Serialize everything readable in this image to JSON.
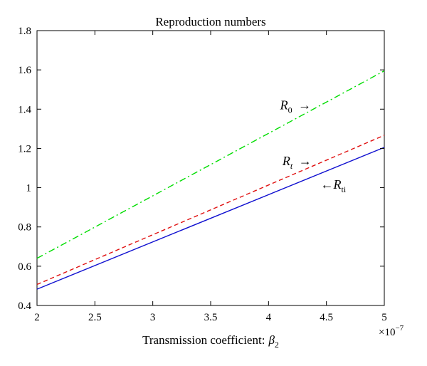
{
  "chart_data": {
    "type": "line",
    "title": "Reproduction numbers",
    "xlabel": "Transmission coefficient:",
    "xlabel_symbol": "β",
    "xlabel_subscript": "2",
    "ylabel": "",
    "x_multiplier": {
      "base": "×10",
      "exponent": "−7"
    },
    "xlim": [
      2,
      5
    ],
    "ylim": [
      0.4,
      1.8
    ],
    "x_ticks": [
      2,
      2.5,
      3,
      3.5,
      4,
      4.5,
      5
    ],
    "x_tick_labels": [
      "2",
      "2.5",
      "3",
      "3.5",
      "4",
      "4.5",
      "5"
    ],
    "y_ticks": [
      0.4,
      0.6,
      0.8,
      1.0,
      1.2,
      1.4,
      1.6,
      1.8
    ],
    "y_tick_labels": [
      "0.4",
      "0.6",
      "0.8",
      "1",
      "1.2",
      "1.4",
      "1.6",
      "1.8"
    ],
    "grid": false,
    "series": [
      {
        "x": [
          2,
          5
        ],
        "y": [
          0.64,
          1.595
        ],
        "color": "#00dd00",
        "dash": "dash-dot"
      },
      {
        "x": [
          2,
          5
        ],
        "y": [
          0.507,
          1.267
        ],
        "color": "#e01010",
        "dash": "dashed"
      },
      {
        "x": [
          2,
          5
        ],
        "y": [
          0.483,
          1.205
        ],
        "color": "#1010d0",
        "dash": "solid"
      }
    ],
    "annotations": [
      {
        "symbol": "R",
        "subscript": "0",
        "arrow": "→",
        "arrow_side": "right",
        "x": 4.1,
        "y": 1.4
      },
      {
        "symbol": "R",
        "subscript": "t",
        "arrow": "→",
        "arrow_side": "right",
        "x": 4.12,
        "y": 1.115
      },
      {
        "symbol": "R",
        "subscript": "ti",
        "arrow": "←",
        "arrow_side": "left",
        "x": 4.45,
        "y": 0.995
      }
    ]
  }
}
